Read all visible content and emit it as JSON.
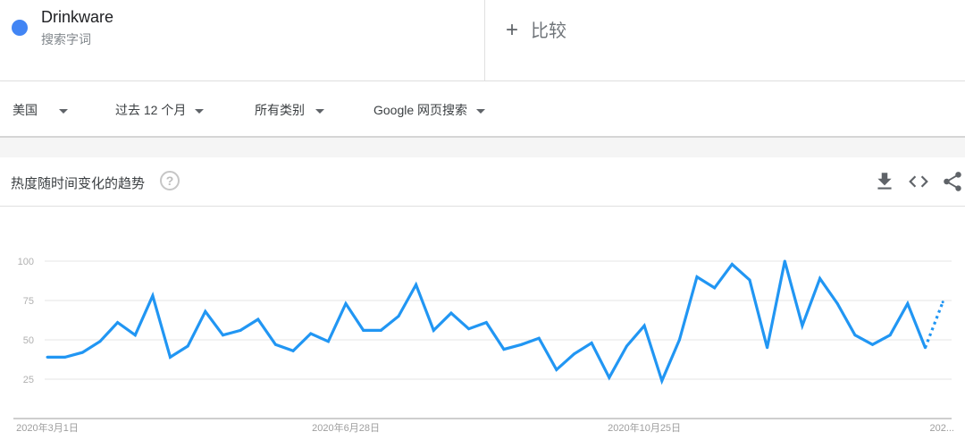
{
  "search_term": {
    "name": "Drinkware",
    "type": "搜索字词",
    "color": "#4285f4"
  },
  "compare": {
    "icon": "plus-icon",
    "label": "比较"
  },
  "filters": [
    {
      "label": "美国"
    },
    {
      "label": "过去 12 个月"
    },
    {
      "label": "所有类别"
    },
    {
      "label": "Google 网页搜索"
    }
  ],
  "card": {
    "title": "热度随时间变化的趋势",
    "help_icon": "help-icon",
    "actions": [
      "download-icon",
      "embed-code-icon",
      "share-icon"
    ]
  },
  "chart_data": {
    "type": "line",
    "title": "",
    "xlabel": "",
    "ylabel": "",
    "ylim": [
      0,
      100
    ],
    "y_ticks": [
      25,
      50,
      75,
      100
    ],
    "grid": true,
    "line_color": "#2196f3",
    "last_point_partial": true,
    "x": [
      "2020-03-01",
      "2020-03-08",
      "2020-03-15",
      "2020-03-22",
      "2020-03-29",
      "2020-04-05",
      "2020-04-12",
      "2020-04-19",
      "2020-04-26",
      "2020-05-03",
      "2020-05-10",
      "2020-05-17",
      "2020-05-24",
      "2020-05-31",
      "2020-06-07",
      "2020-06-14",
      "2020-06-21",
      "2020-06-28",
      "2020-07-05",
      "2020-07-12",
      "2020-07-19",
      "2020-07-26",
      "2020-08-02",
      "2020-08-09",
      "2020-08-16",
      "2020-08-23",
      "2020-08-30",
      "2020-09-06",
      "2020-09-13",
      "2020-09-20",
      "2020-09-27",
      "2020-10-04",
      "2020-10-11",
      "2020-10-18",
      "2020-10-25",
      "2020-11-01",
      "2020-11-08",
      "2020-11-15",
      "2020-11-22",
      "2020-11-29",
      "2020-12-06",
      "2020-12-13",
      "2020-12-20",
      "2020-12-27",
      "2021-01-03",
      "2021-01-10",
      "2021-01-17",
      "2021-01-24",
      "2021-01-31",
      "2021-02-07",
      "2021-02-14",
      "2021-02-21"
    ],
    "values": [
      39,
      39,
      42,
      49,
      61,
      53,
      78,
      39,
      46,
      68,
      53,
      56,
      63,
      47,
      43,
      54,
      49,
      73,
      56,
      56,
      65,
      85,
      56,
      67,
      57,
      61,
      44,
      47,
      51,
      31,
      41,
      48,
      26,
      46,
      59,
      24,
      50,
      90,
      83,
      98,
      88,
      45,
      100,
      59,
      89,
      73,
      53,
      47,
      53,
      73,
      45,
      74
    ],
    "x_tick_labels": [
      {
        "date": "2020-03-01",
        "label": "2020年3月1日"
      },
      {
        "date": "2020-06-28",
        "label": "2020年6月28日"
      },
      {
        "date": "2020-10-25",
        "label": "2020年10月25日"
      },
      {
        "date": "2021-02-21",
        "label": "202..."
      }
    ]
  }
}
